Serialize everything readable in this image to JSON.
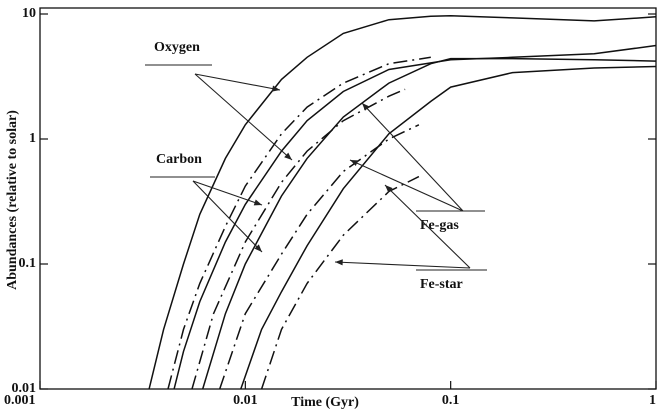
{
  "chart_data": {
    "type": "line",
    "xlabel": "Time (Gyr)",
    "ylabel": "Abundances (relative to solar)",
    "xscale": "log",
    "yscale": "log",
    "xlim": [
      0.001,
      1
    ],
    "ylim": [
      0.01,
      10
    ],
    "xticks": [
      0.001,
      0.01,
      0.1,
      1
    ],
    "yticks": [
      0.01,
      0.1,
      1,
      10
    ],
    "annotations": [
      "Oxygen",
      "Carbon",
      "Fe-gas",
      "Fe-star"
    ],
    "series": [
      {
        "color": "#111111",
        "style": "solid",
        "x": [
          0.0034,
          0.004,
          0.005,
          0.006,
          0.008,
          0.01,
          0.015,
          0.02,
          0.03,
          0.05,
          0.08,
          0.1,
          0.2,
          0.5,
          1
        ],
        "values": [
          0.01,
          0.03,
          0.1,
          0.25,
          0.7,
          1.3,
          3,
          4.5,
          7,
          9,
          9.6,
          9.7,
          9.3,
          8.8,
          9.5
        ]
      },
      {
        "color": "#111111",
        "style": "solid",
        "x": [
          0.0045,
          0.005,
          0.006,
          0.008,
          0.01,
          0.015,
          0.02,
          0.03,
          0.05,
          0.1,
          0.2,
          0.5,
          1
        ],
        "values": [
          0.01,
          0.02,
          0.05,
          0.15,
          0.3,
          0.8,
          1.4,
          2.4,
          3.6,
          4.3,
          4.5,
          4.8,
          5.6
        ]
      },
      {
        "color": "#111111",
        "style": "solid",
        "x": [
          0.0062,
          0.008,
          0.01,
          0.015,
          0.02,
          0.03,
          0.05,
          0.08,
          0.1,
          0.2,
          0.5,
          1
        ],
        "values": [
          0.01,
          0.04,
          0.1,
          0.35,
          0.7,
          1.5,
          2.8,
          4,
          4.4,
          4.4,
          4.3,
          4.2
        ]
      },
      {
        "color": "#111111",
        "style": "solid",
        "x": [
          0.0095,
          0.012,
          0.015,
          0.02,
          0.03,
          0.05,
          0.08,
          0.1,
          0.2,
          0.5,
          1
        ],
        "values": [
          0.01,
          0.03,
          0.06,
          0.14,
          0.4,
          1.1,
          2,
          2.6,
          3.4,
          3.7,
          3.8
        ]
      },
      {
        "color": "#111111",
        "style": "dashdot",
        "x": [
          0.0042,
          0.005,
          0.006,
          0.008,
          0.01,
          0.015,
          0.02,
          0.03,
          0.05,
          0.08
        ],
        "values": [
          0.01,
          0.03,
          0.07,
          0.2,
          0.42,
          1.1,
          1.8,
          2.8,
          4,
          4.5
        ]
      },
      {
        "color": "#111111",
        "style": "dashdot",
        "x": [
          0.0055,
          0.007,
          0.01,
          0.015,
          0.02,
          0.03,
          0.05,
          0.06
        ],
        "values": [
          0.01,
          0.04,
          0.15,
          0.45,
          0.8,
          1.4,
          2.2,
          2.5
        ]
      },
      {
        "color": "#111111",
        "style": "dashdot",
        "x": [
          0.0075,
          0.01,
          0.015,
          0.02,
          0.03,
          0.05,
          0.07
        ],
        "values": [
          0.01,
          0.04,
          0.12,
          0.25,
          0.55,
          1.0,
          1.3
        ]
      },
      {
        "color": "#111111",
        "style": "dashdot",
        "x": [
          0.012,
          0.015,
          0.02,
          0.03,
          0.05,
          0.07
        ],
        "values": [
          0.01,
          0.03,
          0.07,
          0.17,
          0.38,
          0.5
        ]
      }
    ]
  }
}
